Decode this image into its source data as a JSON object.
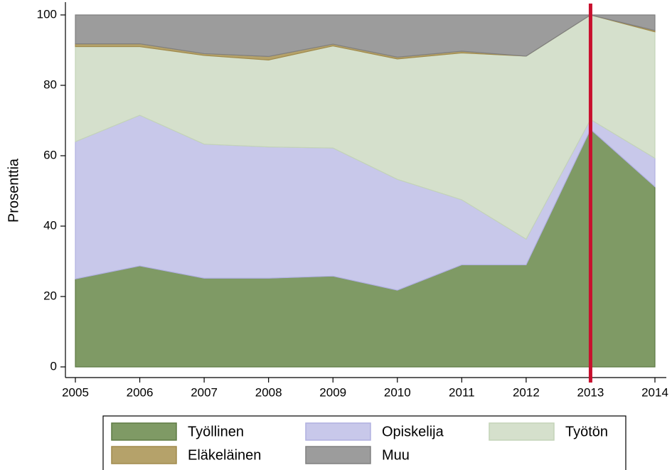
{
  "chart_data": {
    "type": "stacked_area",
    "ylabel": "Prosenttia",
    "x": [
      2005,
      2006,
      2007,
      2008,
      2009,
      2010,
      2011,
      2012,
      2013,
      2014
    ],
    "series": [
      {
        "name": "Työllinen",
        "color": "#7f9a65",
        "values": [
          25,
          28.7,
          25.2,
          25.2,
          25.8,
          21.8,
          29,
          29,
          67.5,
          51.2
        ]
      },
      {
        "name": "Opiskelija",
        "color": "#c8c8ea",
        "values": [
          39,
          42.8,
          38.1,
          37.3,
          36.4,
          31.5,
          18.5,
          7.3,
          2.8,
          8.1
        ]
      },
      {
        "name": "Työtön",
        "color": "#d5e0cc",
        "values": [
          27,
          19.5,
          25.2,
          24.7,
          29,
          34.2,
          41.7,
          52,
          29.7,
          35.9
        ]
      },
      {
        "name": "Eläkeläinen",
        "color": "#b5a26a",
        "values": [
          0.8,
          0.8,
          0.5,
          1,
          0.5,
          0.5,
          0.5,
          0,
          0,
          0.4
        ]
      },
      {
        "name": "Muu",
        "color": "#9c9c9c",
        "values": [
          8.2,
          8.2,
          11,
          11.8,
          8.3,
          12,
          10.3,
          11.7,
          0,
          4.4
        ]
      }
    ],
    "xlim": [
      2005,
      2014
    ],
    "xticks": [
      2005,
      2006,
      2007,
      2008,
      2009,
      2010,
      2011,
      2012,
      2013,
      2014
    ],
    "ylim": [
      0,
      100
    ],
    "yticks": [
      0,
      20,
      40,
      60,
      80,
      100
    ],
    "reference_line": {
      "x": 2013,
      "color": "#c8102e"
    }
  }
}
